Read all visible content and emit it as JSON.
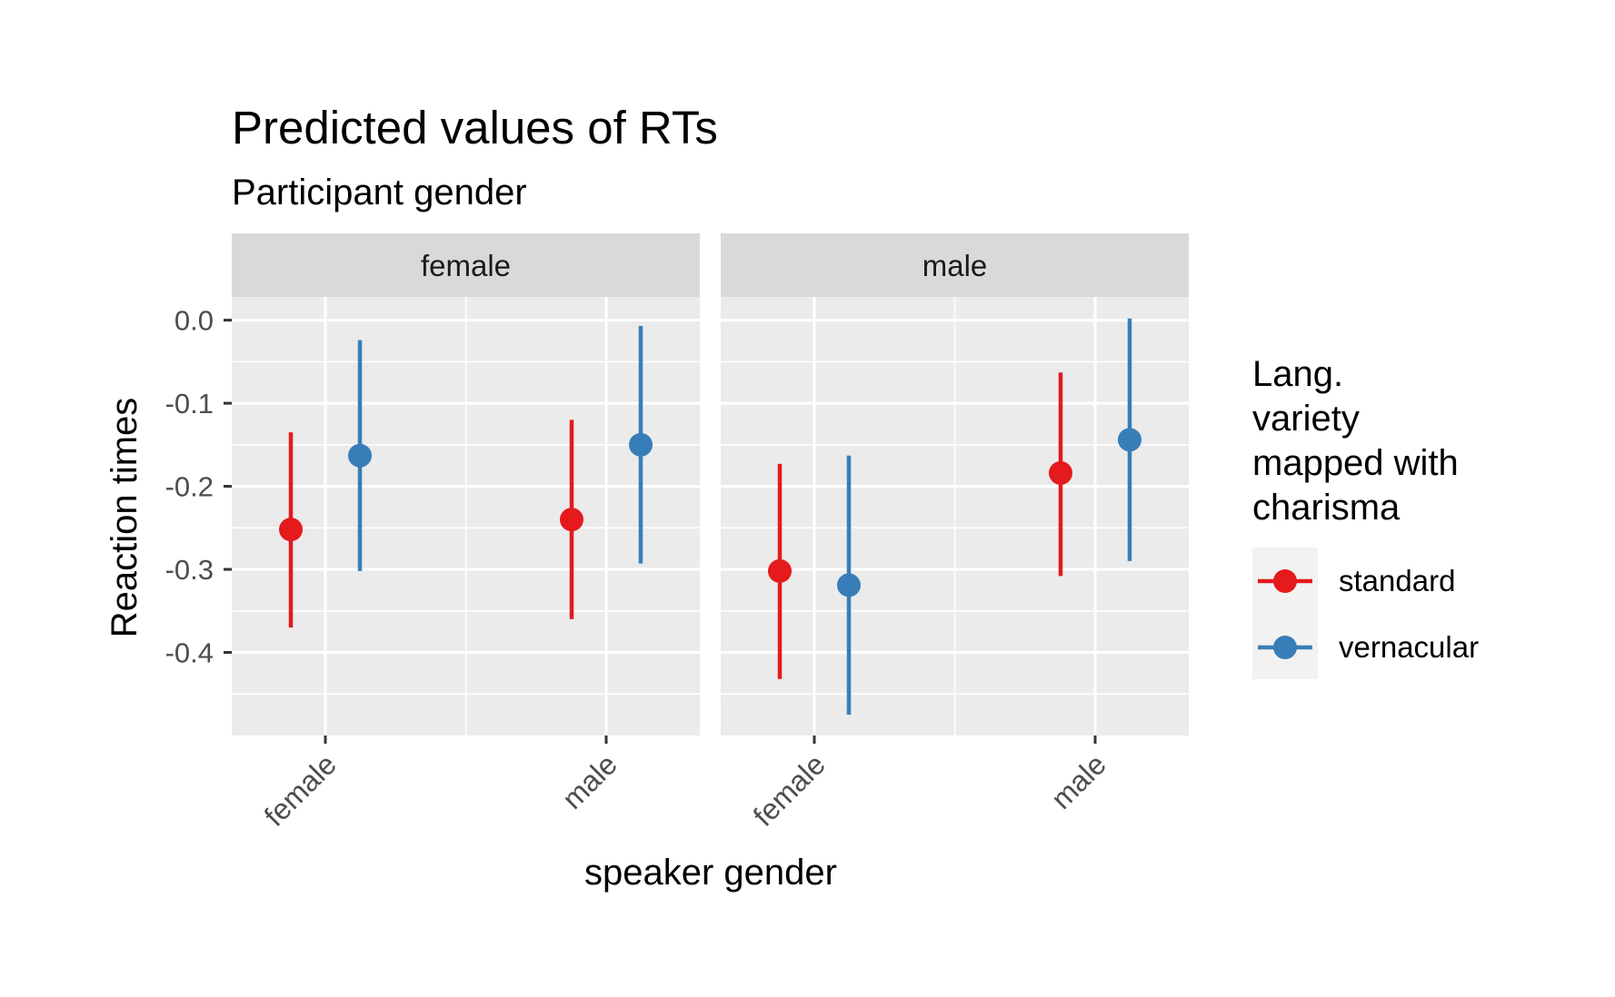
{
  "chart_data": {
    "type": "scatter",
    "title": "Predicted values of RTs",
    "subtitle": "Participant gender",
    "xlabel": "speaker gender",
    "ylabel": "Reaction times",
    "categories": [
      "female",
      "male"
    ],
    "yticks": [
      "0.0",
      "-0.1",
      "-0.2",
      "-0.3",
      "-0.4"
    ],
    "ylim": [
      -0.5,
      0.028
    ],
    "grid": true,
    "facets": [
      {
        "label": "female",
        "series": [
          {
            "name": "standard",
            "values": [
              -0.252,
              -0.24
            ],
            "lower": [
              -0.37,
              -0.36
            ],
            "upper": [
              -0.135,
              -0.12
            ]
          },
          {
            "name": "vernacular",
            "values": [
              -0.163,
              -0.15
            ],
            "lower": [
              -0.302,
              -0.293
            ],
            "upper": [
              -0.024,
              -0.007
            ]
          }
        ]
      },
      {
        "label": "male",
        "series": [
          {
            "name": "standard",
            "values": [
              -0.302,
              -0.184
            ],
            "lower": [
              -0.432,
              -0.308
            ],
            "upper": [
              -0.173,
              -0.063
            ]
          },
          {
            "name": "vernacular",
            "values": [
              -0.319,
              -0.144
            ],
            "lower": [
              -0.475,
              -0.29
            ],
            "upper": [
              -0.163,
              0.002
            ]
          }
        ]
      }
    ],
    "legend": {
      "title_lines": [
        "Lang.",
        "variety",
        "mapped with",
        "charisma"
      ],
      "placement": "right",
      "entries": [
        {
          "name": "standard",
          "color": "#e41a1c"
        },
        {
          "name": "vernacular",
          "color": "#377eb8"
        }
      ]
    },
    "colors": {
      "standard": "#e41a1c",
      "vernacular": "#377eb8"
    }
  }
}
